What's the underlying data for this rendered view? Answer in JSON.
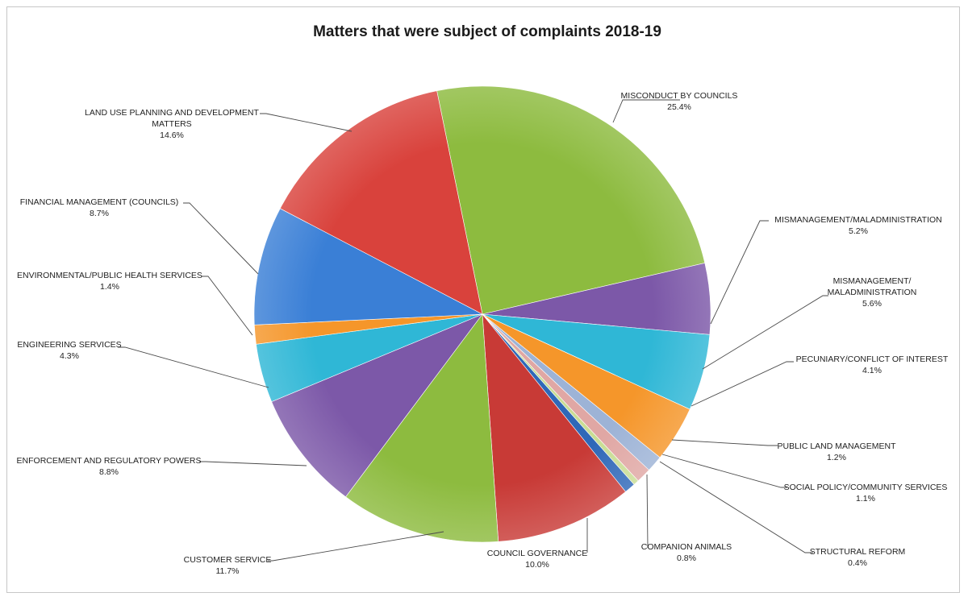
{
  "chart_data": {
    "type": "pie",
    "title": "Matters that were subject of complaints 2018-19",
    "slices": [
      {
        "name": "MISCONDUCT BY COUNCILS",
        "lines": [
          "MISCONDUCT BY COUNCILS"
        ],
        "pct_label": "25.4%",
        "value": 25.4,
        "color": "#8dbb3f"
      },
      {
        "name": "MISMANAGEMENT/MALADMINISTRATION",
        "lines": [
          "MISMANAGEMENT/MALADMINISTRATION"
        ],
        "pct_label": "5.2%",
        "value": 5.2,
        "color": "#7c58a8"
      },
      {
        "name": "MISMANAGEMENT/ MALADMINISTRATION",
        "lines": [
          "MISMANAGEMENT/",
          "MALADMINISTRATION"
        ],
        "pct_label": "5.6%",
        "value": 5.6,
        "color": "#2fb7d6"
      },
      {
        "name": "PECUNIARY/CONFLICT OF INTEREST",
        "lines": [
          "PECUNIARY/CONFLICT OF INTEREST"
        ],
        "pct_label": "4.1%",
        "value": 4.1,
        "color": "#f5962a"
      },
      {
        "name": "PUBLIC LAND MANAGEMENT",
        "lines": [
          "PUBLIC LAND MANAGEMENT"
        ],
        "pct_label": "1.2%",
        "value": 1.2,
        "color": "#9db3d6"
      },
      {
        "name": "SOCIAL POLICY/COMMUNITY SERVICES",
        "lines": [
          "SOCIAL POLICY/COMMUNITY SERVICES"
        ],
        "pct_label": "1.1%",
        "value": 1.1,
        "color": "#e0a7a4"
      },
      {
        "name": "STRUCTURAL REFORM",
        "lines": [
          "STRUCTURAL REFORM"
        ],
        "pct_label": "0.4%",
        "value": 0.4,
        "color": "#c9dd94"
      },
      {
        "name": "COMPANION ANIMALS",
        "lines": [
          "COMPANION ANIMALS"
        ],
        "pct_label": "0.8%",
        "value": 0.8,
        "color": "#2f68b8"
      },
      {
        "name": "COUNCIL GOVERNANCE",
        "lines": [
          "COUNCIL GOVERNANCE"
        ],
        "pct_label": "10.0%",
        "value": 10.0,
        "color": "#c83a36"
      },
      {
        "name": "CUSTOMER SERVICE",
        "lines": [
          "CUSTOMER SERVICE"
        ],
        "pct_label": "11.7%",
        "value": 11.7,
        "color": "#8dbb3f"
      },
      {
        "name": "ENFORCEMENT AND REGULATORY POWERS",
        "lines": [
          "ENFORCEMENT AND REGULATORY POWERS"
        ],
        "pct_label": "8.8%",
        "value": 8.8,
        "color": "#7c58a8"
      },
      {
        "name": "ENGINEERING SERVICES",
        "lines": [
          "ENGINEERING SERVICES"
        ],
        "pct_label": "4.3%",
        "value": 4.3,
        "color": "#2fb7d6"
      },
      {
        "name": "ENVIRONMENTAL/PUBLIC HEALTH SERVICES",
        "lines": [
          "ENVIRONMENTAL/PUBLIC HEALTH SERVICES"
        ],
        "pct_label": "1.4%",
        "value": 1.4,
        "color": "#f5962a"
      },
      {
        "name": "FINANCIAL MANAGEMENT (COUNCILS)",
        "lines": [
          "FINANCIAL MANAGEMENT (COUNCILS)"
        ],
        "pct_label": "8.7%",
        "value": 8.7,
        "color": "#3a7fd6"
      },
      {
        "name": "LAND USE PLANNING AND DEVELOPMENT MATTERS",
        "lines": [
          "LAND USE PLANNING AND DEVELOPMENT",
          "MATTERS"
        ],
        "pct_label": "14.6%",
        "value": 14.6,
        "color": "#d9423c"
      }
    ]
  }
}
